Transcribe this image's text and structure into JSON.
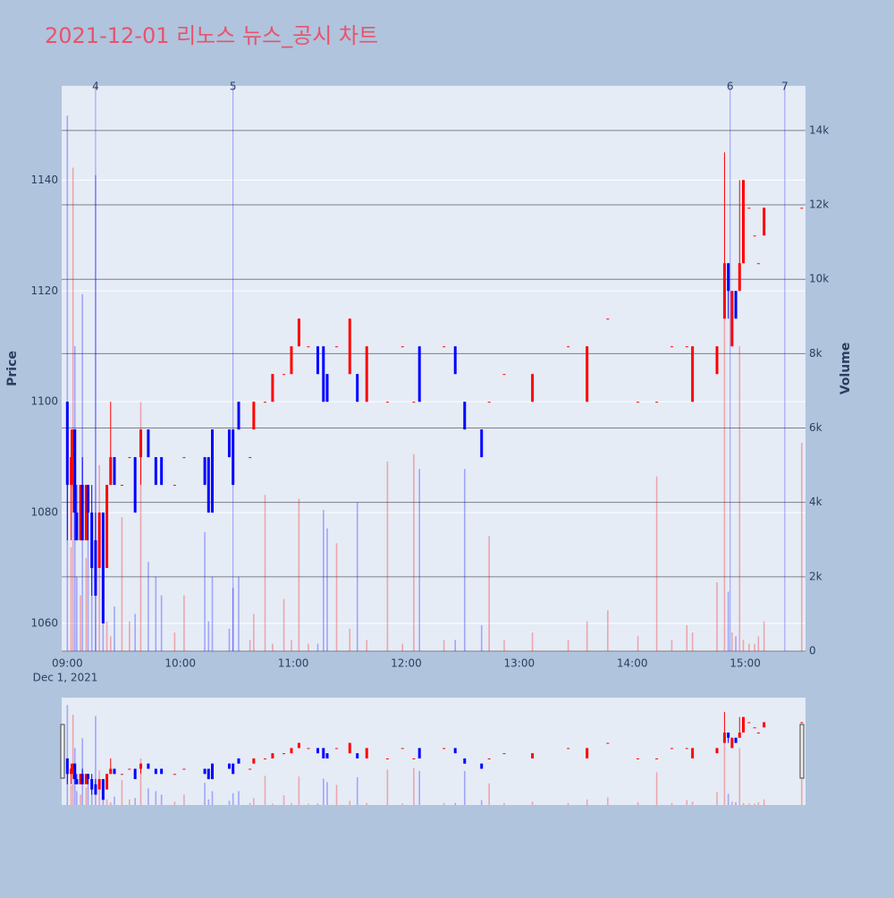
{
  "chart_data": {
    "type": "candlestick",
    "title": "2021-12-01 리노스 뉴스_공시 차트",
    "y_label": "Price",
    "y2_label": "Volume",
    "x_date_label": "Dec 1, 2021",
    "increasing_color": "#ff0000",
    "decreasing_color": "#0000ff",
    "grid": true,
    "y2grid": true,
    "rangeslider": true,
    "xlim": [
      "08:57",
      "15:32"
    ],
    "xticks": [
      "09:00",
      "10:00",
      "11:00",
      "12:00",
      "13:00",
      "14:00",
      "15:00"
    ],
    "ylim": [
      1055,
      1157
    ],
    "yticks": [
      1060,
      1080,
      1100,
      1120,
      1140
    ],
    "y2lim": [
      0,
      15200
    ],
    "y2ticks": [
      0,
      {
        "value": 2000,
        "label": "2k"
      },
      {
        "value": 4000,
        "label": "4k"
      },
      {
        "value": 6000,
        "label": "6k"
      },
      {
        "value": 8000,
        "label": "8k"
      },
      {
        "value": 10000,
        "label": "10k"
      },
      {
        "value": 12000,
        "label": "12k"
      },
      {
        "value": 14000,
        "label": "14k"
      }
    ],
    "annotations": [
      {
        "x": "09:15",
        "label": "4"
      },
      {
        "x": "10:28",
        "label": "5"
      },
      {
        "x": "14:52",
        "label": "6"
      },
      {
        "x": "15:21",
        "label": "7"
      }
    ],
    "x": [
      "09:00",
      "09:02",
      "09:03",
      "09:04",
      "09:05",
      "09:07",
      "09:08",
      "09:10",
      "09:11",
      "09:13",
      "09:15",
      "09:17",
      "09:19",
      "09:21",
      "09:23",
      "09:25",
      "09:29",
      "09:33",
      "09:36",
      "09:39",
      "09:43",
      "09:47",
      "09:50",
      "09:57",
      "10:02",
      "10:13",
      "10:15",
      "10:17",
      "10:26",
      "10:28",
      "10:31",
      "10:37",
      "10:39",
      "10:45",
      "10:49",
      "10:55",
      "10:59",
      "11:03",
      "11:08",
      "11:13",
      "11:16",
      "11:18",
      "11:23",
      "11:30",
      "11:34",
      "11:39",
      "11:50",
      "11:58",
      "12:04",
      "12:07",
      "12:20",
      "12:26",
      "12:31",
      "12:40",
      "12:44",
      "12:52",
      "13:07",
      "13:26",
      "13:36",
      "13:47",
      "14:03",
      "14:13",
      "14:21",
      "14:29",
      "14:32",
      "14:45",
      "14:49",
      "14:51",
      "14:53",
      "14:55",
      "14:57",
      "14:59",
      "15:02",
      "15:05",
      "15:07",
      "15:10",
      "15:30"
    ],
    "open": [
      1100,
      1085,
      1090,
      1095,
      1080,
      1075,
      1085,
      1075,
      1085,
      1080,
      1075,
      1070,
      1080,
      1070,
      1085,
      1090,
      1085,
      1090,
      1090,
      1090,
      1095,
      1090,
      1090,
      1085,
      1090,
      1090,
      1090,
      1095,
      1095,
      1095,
      1100,
      1090,
      1095,
      1100,
      1100,
      1105,
      1105,
      1110,
      1110,
      1110,
      1110,
      1105,
      1110,
      1105,
      1105,
      1100,
      1100,
      1110,
      1100,
      1110,
      1110,
      1110,
      1100,
      1095,
      1100,
      1105,
      1100,
      1110,
      1100,
      1115,
      1100,
      1100,
      1110,
      1110,
      1100,
      1105,
      1115,
      1125,
      1110,
      1120,
      1120,
      1125,
      1135,
      1130,
      1125,
      1130,
      1135
    ],
    "high": [
      1100,
      1095,
      1095,
      1095,
      1085,
      1085,
      1090,
      1085,
      1085,
      1085,
      1080,
      1080,
      1080,
      1085,
      1100,
      1090,
      1085,
      1090,
      1090,
      1095,
      1095,
      1090,
      1090,
      1085,
      1090,
      1090,
      1090,
      1095,
      1095,
      1095,
      1100,
      1090,
      1100,
      1100,
      1105,
      1105,
      1110,
      1115,
      1110,
      1110,
      1110,
      1105,
      1110,
      1115,
      1105,
      1110,
      1100,
      1110,
      1100,
      1110,
      1110,
      1110,
      1100,
      1095,
      1100,
      1105,
      1105,
      1110,
      1110,
      1115,
      1100,
      1100,
      1110,
      1110,
      1110,
      1110,
      1145,
      1125,
      1120,
      1120,
      1140,
      1140,
      1135,
      1130,
      1125,
      1135,
      1135
    ],
    "low": [
      1075,
      1075,
      1080,
      1075,
      1075,
      1075,
      1075,
      1075,
      1075,
      1065,
      1065,
      1070,
      1060,
      1070,
      1085,
      1085,
      1085,
      1090,
      1080,
      1085,
      1090,
      1085,
      1085,
      1085,
      1090,
      1085,
      1080,
      1080,
      1090,
      1085,
      1095,
      1090,
      1095,
      1100,
      1100,
      1105,
      1105,
      1110,
      1110,
      1105,
      1100,
      1100,
      1110,
      1105,
      1100,
      1100,
      1100,
      1110,
      1100,
      1100,
      1110,
      1105,
      1095,
      1090,
      1100,
      1105,
      1100,
      1110,
      1100,
      1115,
      1100,
      1100,
      1110,
      1110,
      1100,
      1105,
      1115,
      1115,
      1110,
      1115,
      1120,
      1125,
      1135,
      1130,
      1125,
      1130,
      1135
    ],
    "close": [
      1085,
      1090,
      1095,
      1080,
      1075,
      1085,
      1075,
      1085,
      1080,
      1070,
      1065,
      1080,
      1060,
      1085,
      1090,
      1085,
      1085,
      1090,
      1080,
      1095,
      1090,
      1085,
      1085,
      1085,
      1090,
      1085,
      1080,
      1080,
      1090,
      1085,
      1095,
      1090,
      1100,
      1100,
      1105,
      1105,
      1110,
      1115,
      1110,
      1105,
      1100,
      1100,
      1110,
      1115,
      1100,
      1110,
      1100,
      1110,
      1100,
      1100,
      1110,
      1105,
      1095,
      1090,
      1100,
      1105,
      1105,
      1110,
      1110,
      1115,
      1100,
      1100,
      1110,
      1110,
      1110,
      1110,
      1125,
      1120,
      1120,
      1115,
      1125,
      1140,
      1135,
      1130,
      1125,
      1135,
      1135
    ],
    "volume": [
      14400,
      2800,
      13000,
      8200,
      2000,
      1500,
      9600,
      2500,
      3000,
      3500,
      12800,
      5000,
      1500,
      800,
      400,
      1200,
      3600,
      800,
      1000,
      6700,
      2400,
      2000,
      1500,
      500,
      1500,
      3200,
      800,
      2000,
      600,
      1700,
      2000,
      300,
      1000,
      4200,
      200,
      1400,
      300,
      4100,
      200,
      200,
      3800,
      3300,
      2900,
      600,
      4000,
      300,
      5100,
      200,
      5300,
      4900,
      300,
      300,
      4900,
      700,
      3100,
      300,
      500,
      300,
      800,
      1100,
      400,
      4700,
      300,
      700,
      500,
      1850,
      9600,
      1600,
      500,
      400,
      8200,
      300,
      200,
      200,
      400,
      800,
      5600
    ]
  }
}
